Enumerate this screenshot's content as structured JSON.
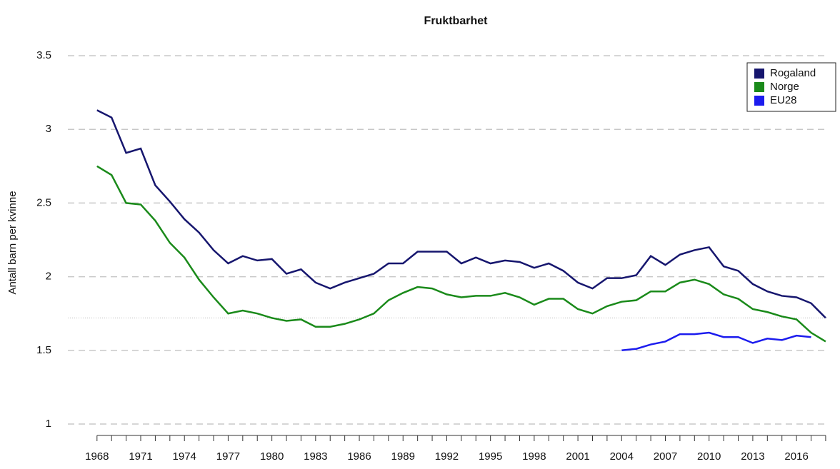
{
  "chart_data": {
    "type": "line",
    "title": "Fruktbarhet",
    "y_label": "Antall barn per kvinne",
    "x": [
      1968,
      1969,
      1970,
      1971,
      1972,
      1973,
      1974,
      1975,
      1976,
      1977,
      1978,
      1979,
      1980,
      1981,
      1982,
      1983,
      1984,
      1985,
      1986,
      1987,
      1988,
      1989,
      1990,
      1991,
      1992,
      1993,
      1994,
      1995,
      1996,
      1997,
      1998,
      1999,
      2000,
      2001,
      2002,
      2003,
      2004,
      2005,
      2006,
      2007,
      2008,
      2009,
      2010,
      2011,
      2012,
      2013,
      2014,
      2015,
      2016,
      2017,
      2018
    ],
    "series": [
      {
        "name": "Rogaland",
        "color": "#16166e",
        "values": [
          3.13,
          3.08,
          2.84,
          2.87,
          2.62,
          2.51,
          2.39,
          2.3,
          2.18,
          2.09,
          2.14,
          2.11,
          2.12,
          2.02,
          2.05,
          1.96,
          1.92,
          1.96,
          1.99,
          2.02,
          2.09,
          2.09,
          2.17,
          2.17,
          2.17,
          2.09,
          2.13,
          2.09,
          2.11,
          2.1,
          2.06,
          2.09,
          2.04,
          1.96,
          1.92,
          1.99,
          1.99,
          2.01,
          2.14,
          2.08,
          2.15,
          2.18,
          2.2,
          2.07,
          2.04,
          1.95,
          1.9,
          1.87,
          1.86,
          1.82,
          1.72
        ]
      },
      {
        "name": "Norge",
        "color": "#1a8a1a",
        "values": [
          2.75,
          2.69,
          2.5,
          2.49,
          2.38,
          2.23,
          2.13,
          1.98,
          1.86,
          1.75,
          1.77,
          1.75,
          1.72,
          1.7,
          1.71,
          1.66,
          1.66,
          1.68,
          1.71,
          1.75,
          1.84,
          1.89,
          1.93,
          1.92,
          1.88,
          1.86,
          1.87,
          1.87,
          1.89,
          1.86,
          1.81,
          1.85,
          1.85,
          1.78,
          1.75,
          1.8,
          1.83,
          1.84,
          1.9,
          1.9,
          1.96,
          1.98,
          1.95,
          1.88,
          1.85,
          1.78,
          1.76,
          1.73,
          1.71,
          1.62,
          1.56
        ]
      },
      {
        "name": "EU28",
        "color": "#1c1cee",
        "values": [
          null,
          null,
          null,
          null,
          null,
          null,
          null,
          null,
          null,
          null,
          null,
          null,
          null,
          null,
          null,
          null,
          null,
          null,
          null,
          null,
          null,
          null,
          null,
          null,
          null,
          null,
          null,
          null,
          null,
          null,
          null,
          null,
          null,
          null,
          null,
          null,
          1.5,
          1.51,
          1.54,
          1.56,
          1.61,
          1.61,
          1.62,
          1.59,
          1.59,
          1.55,
          1.58,
          1.57,
          1.6,
          1.59,
          null
        ]
      }
    ],
    "reference_line": 1.72,
    "xlim": [
      1966,
      2018.2
    ],
    "xticks": [
      1968,
      1971,
      1974,
      1977,
      1980,
      1983,
      1986,
      1989,
      1992,
      1995,
      1998,
      2001,
      2004,
      2007,
      2010,
      2013,
      2016
    ],
    "minor_xticks": [
      1968,
      1969,
      1970,
      1971,
      1972,
      1973,
      1974,
      1975,
      1976,
      1977,
      1978,
      1979,
      1980,
      1981,
      1982,
      1983,
      1984,
      1985,
      1986,
      1987,
      1988,
      1989,
      1990,
      1991,
      1992,
      1993,
      1994,
      1995,
      1996,
      1997,
      1998,
      1999,
      2000,
      2001,
      2002,
      2003,
      2004,
      2005,
      2006,
      2007,
      2008,
      2009,
      2010,
      2011,
      2012,
      2013,
      2014,
      2015,
      2016,
      2017,
      2018
    ],
    "ylim": [
      1,
      3.5
    ],
    "yticks": [
      1,
      1.5,
      2,
      2.5,
      3,
      3.5
    ],
    "grid": true,
    "legend": "top-right"
  }
}
